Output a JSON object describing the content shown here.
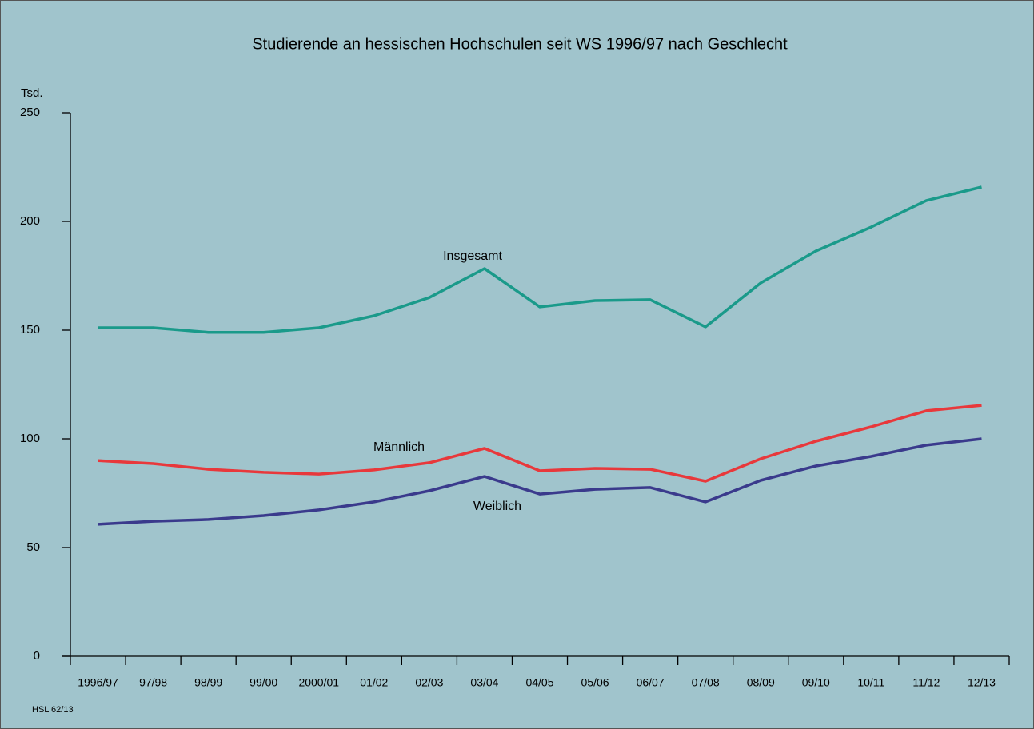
{
  "chart_data": {
    "type": "line",
    "title": "Studierende an hessischen Hochschulen seit WS 1996/97 nach Geschlecht",
    "y_label": "Tsd.",
    "footnote": "HSL 62/13",
    "categories": [
      "1996/97",
      "97/98",
      "98/99",
      "99/00",
      "2000/01",
      "01/02",
      "02/03",
      "03/04",
      "04/05",
      "05/06",
      "06/07",
      "07/08",
      "08/09",
      "09/10",
      "10/11",
      "11/12",
      "12/13"
    ],
    "series": [
      {
        "name": "Insgesamt",
        "color": "#1a9a8a",
        "values": [
          151.1,
          151.1,
          149,
          149,
          151.1,
          156.6,
          165,
          178.3,
          160.7,
          163.6,
          164,
          151.5,
          171.7,
          186.4,
          197.4,
          209.6,
          215.8
        ]
      },
      {
        "name": "Männlich",
        "color": "#e8383b",
        "values": [
          90,
          88.6,
          86,
          84.6,
          83.8,
          85.7,
          89,
          95.6,
          85.3,
          86.4,
          86,
          80.5,
          90.8,
          98.9,
          105.5,
          112.9,
          115.4
        ]
      },
      {
        "name": "Weiblich",
        "color": "#3a3a8c",
        "values": [
          60.7,
          62.1,
          62.9,
          64.7,
          67.3,
          71,
          76.1,
          82.7,
          74.6,
          76.8,
          77.6,
          71,
          80.9,
          87.5,
          91.9,
          97.1,
          100
        ]
      }
    ],
    "ylim": [
      0,
      250
    ],
    "yticks": [
      0,
      50,
      100,
      150,
      200,
      250
    ],
    "grid": false
  }
}
